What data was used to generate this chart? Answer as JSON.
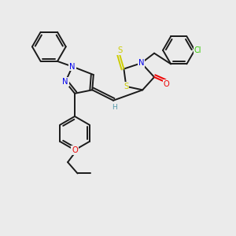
{
  "bg_color": "#ebebeb",
  "bond_color": "#1a1a1a",
  "atom_colors": {
    "N": "#0000ee",
    "O": "#ee0000",
    "S": "#cccc00",
    "Cl": "#33cc00",
    "H": "#5599aa",
    "C": "#1a1a1a"
  },
  "lw": 1.4
}
